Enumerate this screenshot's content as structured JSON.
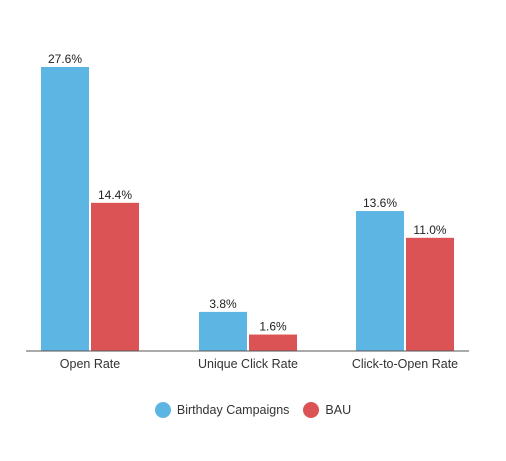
{
  "chart_data": {
    "type": "bar",
    "categories": [
      "Open Rate",
      "Unique Click Rate",
      "Click-to-Open Rate"
    ],
    "series": [
      {
        "name": "Birthday Campaigns",
        "color": "#5db5e3",
        "values": [
          27.6,
          3.8,
          13.6
        ],
        "labels": [
          "27.6%",
          "3.8%",
          "13.6%"
        ]
      },
      {
        "name": "BAU",
        "color": "#dc5356",
        "values": [
          14.4,
          1.6,
          11.0
        ],
        "labels": [
          "14.4%",
          "1.6%",
          "11.0%"
        ]
      }
    ],
    "title": "",
    "xlabel": "",
    "ylabel": "",
    "ylim": [
      0,
      30
    ],
    "grid": false,
    "legend_position": "bottom-center"
  }
}
